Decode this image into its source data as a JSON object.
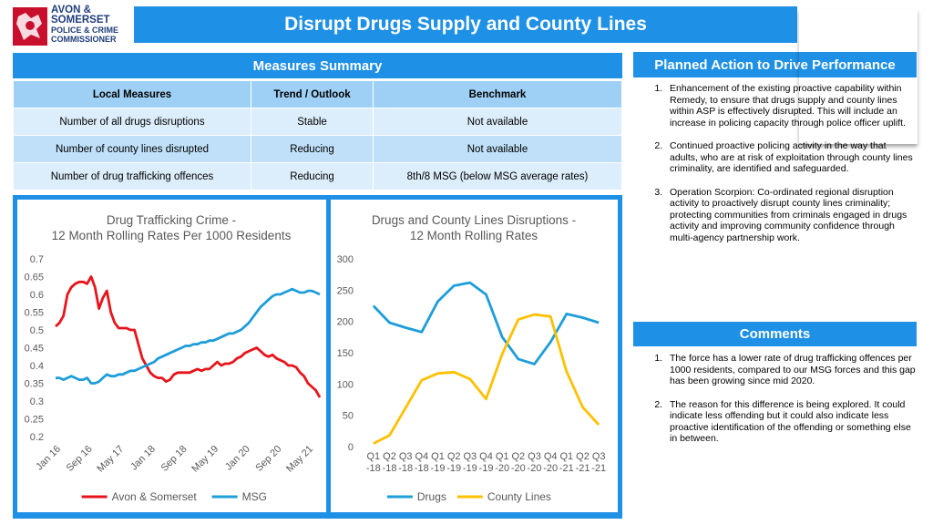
{
  "logo": {
    "lines": [
      "AVON &",
      "SOMERSET",
      "POLICE & CRIME",
      "COMMISSIONER"
    ]
  },
  "title": "Disrupt Drugs Supply and County Lines",
  "measures": {
    "heading": "Measures Summary",
    "headers": [
      "Local Measures",
      "Trend / Outlook",
      "Benchmark"
    ],
    "rows": [
      [
        "Number of all drugs disruptions",
        "Stable",
        "Not available"
      ],
      [
        "Number of county lines disrupted",
        "Reducing",
        "Not available"
      ],
      [
        "Number of drug trafficking offences",
        "Reducing",
        "8th/8 MSG (below MSG average rates)"
      ]
    ]
  },
  "actions": {
    "heading": "Planned Action to Drive Performance",
    "items": [
      "Enhancement of the existing proactive capability within Remedy, to ensure that drugs supply and county lines within ASP is effectively disrupted. This will include an increase in policing capacity through police officer uplift.",
      "Continued proactive policing activity in the way that adults, who are at risk of exploitation through county lines criminality, are identified and safeguarded.",
      "Operation Scorpion: Co-ordinated regional disruption activity to proactively disrupt county lines criminality; protecting communities from criminals engaged in drugs activity and improving community confidence through multi-agency partnership work."
    ]
  },
  "comments": {
    "heading": "Comments",
    "items": [
      "The force has a lower rate of drug trafficking offences per 1000 residents, compared to our MSG forces and this gap has been growing since mid 2020.",
      "The reason for this difference is being explored. It could indicate less offending but it could also indicate less proactive identification of the offending or something else in between."
    ]
  },
  "chart_data": [
    {
      "type": "line",
      "title": "Drug Trafficking Crime -\n12 Month Rolling Rates Per 1000 Residents",
      "xlabel": "",
      "ylabel": "",
      "ylim": [
        0.2,
        0.7
      ],
      "yticks": [
        "0.2",
        "0.25",
        "0.3",
        "0.35",
        "0.4",
        "0.45",
        "0.5",
        "0.55",
        "0.6",
        "0.65",
        "0.7"
      ],
      "x_tick_labels": [
        "Jan 16",
        "Sep 16",
        "May 17",
        "Jan 18",
        "Sep 18",
        "May 19",
        "Jan 20",
        "Sep 20",
        "May 21"
      ],
      "x_start": "Jan 16",
      "grid": false,
      "legend": "bottom",
      "series": [
        {
          "name": "Avon & Somerset",
          "color": "#e8141c",
          "values": [
            0.51,
            0.52,
            0.54,
            0.6,
            0.62,
            0.63,
            0.635,
            0.635,
            0.63,
            0.65,
            0.62,
            0.56,
            0.59,
            0.61,
            0.55,
            0.52,
            0.505,
            0.505,
            0.505,
            0.5,
            0.5,
            0.46,
            0.42,
            0.4,
            0.38,
            0.37,
            0.365,
            0.365,
            0.355,
            0.36,
            0.375,
            0.38,
            0.38,
            0.38,
            0.38,
            0.385,
            0.39,
            0.385,
            0.39,
            0.39,
            0.4,
            0.41,
            0.4,
            0.405,
            0.405,
            0.41,
            0.42,
            0.425,
            0.435,
            0.44,
            0.445,
            0.45,
            0.44,
            0.43,
            0.425,
            0.43,
            0.42,
            0.415,
            0.41,
            0.4,
            0.4,
            0.395,
            0.38,
            0.37,
            0.35,
            0.34,
            0.33,
            0.31
          ]
        },
        {
          "name": "MSG",
          "color": "#1d9dd9",
          "values": [
            0.365,
            0.365,
            0.36,
            0.365,
            0.37,
            0.365,
            0.36,
            0.36,
            0.365,
            0.35,
            0.35,
            0.355,
            0.365,
            0.375,
            0.37,
            0.37,
            0.375,
            0.375,
            0.38,
            0.385,
            0.385,
            0.39,
            0.395,
            0.4,
            0.405,
            0.41,
            0.42,
            0.425,
            0.43,
            0.435,
            0.44,
            0.445,
            0.45,
            0.455,
            0.455,
            0.46,
            0.46,
            0.465,
            0.465,
            0.47,
            0.47,
            0.475,
            0.48,
            0.485,
            0.49,
            0.49,
            0.495,
            0.5,
            0.51,
            0.52,
            0.535,
            0.55,
            0.565,
            0.575,
            0.585,
            0.595,
            0.6,
            0.6,
            0.605,
            0.61,
            0.615,
            0.61,
            0.605,
            0.605,
            0.61,
            0.61,
            0.605,
            0.6
          ]
        }
      ]
    },
    {
      "type": "line",
      "title": "Drugs and County Lines Disruptions -\n12 Month Rolling Rates",
      "xlabel": "",
      "ylabel": "",
      "ylim": [
        0,
        300
      ],
      "yticks": [
        "0",
        "50",
        "100",
        "150",
        "200",
        "250",
        "300"
      ],
      "categories": [
        [
          "Q1",
          "-18"
        ],
        [
          "Q2",
          "-18"
        ],
        [
          "Q3",
          "-18"
        ],
        [
          "Q4",
          "-18"
        ],
        [
          "Q1",
          "-19"
        ],
        [
          "Q2",
          "-19"
        ],
        [
          "Q3",
          "-19"
        ],
        [
          "Q4",
          "-19"
        ],
        [
          "Q1",
          "-20"
        ],
        [
          "Q2",
          "-20"
        ],
        [
          "Q3",
          "-20"
        ],
        [
          "Q4",
          "-20"
        ],
        [
          "Q1",
          "-21"
        ],
        [
          "Q2",
          "-21"
        ],
        [
          "Q3",
          "-21"
        ]
      ],
      "grid": false,
      "legend": "bottom",
      "series": [
        {
          "name": "Drugs",
          "color": "#1d9dd9",
          "values": [
            225,
            198,
            190,
            183,
            232,
            257,
            262,
            243,
            175,
            140,
            132,
            167,
            212,
            206,
            198
          ]
        },
        {
          "name": "County Lines",
          "color": "#ffc000",
          "values": [
            5,
            18,
            62,
            106,
            117,
            119,
            108,
            76,
            148,
            203,
            211,
            208,
            120,
            63,
            35
          ]
        }
      ]
    }
  ]
}
